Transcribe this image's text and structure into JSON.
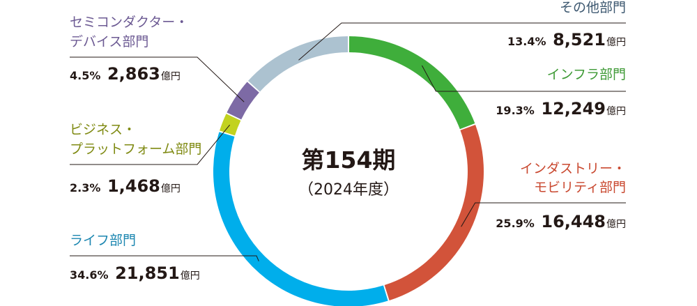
{
  "chart_data": {
    "type": "pie",
    "style": "donut",
    "center_title": "第154期",
    "center_subtitle": "（2024年度）",
    "unit": "億円",
    "segments": [
      {
        "key": "infra",
        "name_lines": [
          "インフラ部門"
        ],
        "percent_label": "19.3%",
        "percent": 19.3,
        "value_label": "12,249",
        "value": 12249,
        "color": "#3fae3b",
        "name_color": "#3f9a36"
      },
      {
        "key": "industry",
        "name_lines": [
          "インダストリー・",
          "モビリティ部門"
        ],
        "percent_label": "25.9%",
        "percent": 25.9,
        "value_label": "16,448",
        "value": 16448,
        "color": "#d2533a",
        "name_color": "#c9482f"
      },
      {
        "key": "life",
        "name_lines": [
          "ライフ部門"
        ],
        "percent_label": "34.6%",
        "percent": 34.6,
        "value_label": "21,851",
        "value": 21851,
        "color": "#00aeeb",
        "name_color": "#1b86b0"
      },
      {
        "key": "business",
        "name_lines": [
          "ビジネス・",
          "プラットフォーム部門"
        ],
        "percent_label": "2.3%",
        "percent": 2.3,
        "value_label": "1,468",
        "value": 1468,
        "color": "#c2d21f",
        "name_color": "#7f8a12"
      },
      {
        "key": "semi",
        "name_lines": [
          "セミコンダクター・",
          "デバイス部門"
        ],
        "percent_label": "4.5%",
        "percent": 4.5,
        "value_label": "2,863",
        "value": 2863,
        "color": "#7d6aa5",
        "name_color": "#6c5a93"
      },
      {
        "key": "other",
        "name_lines": [
          "その他部門"
        ],
        "percent_label": "13.4%",
        "percent": 13.4,
        "value_label": "8,521",
        "value": 8521,
        "color": "#acc2d0",
        "name_color": "#3d5870"
      }
    ]
  }
}
